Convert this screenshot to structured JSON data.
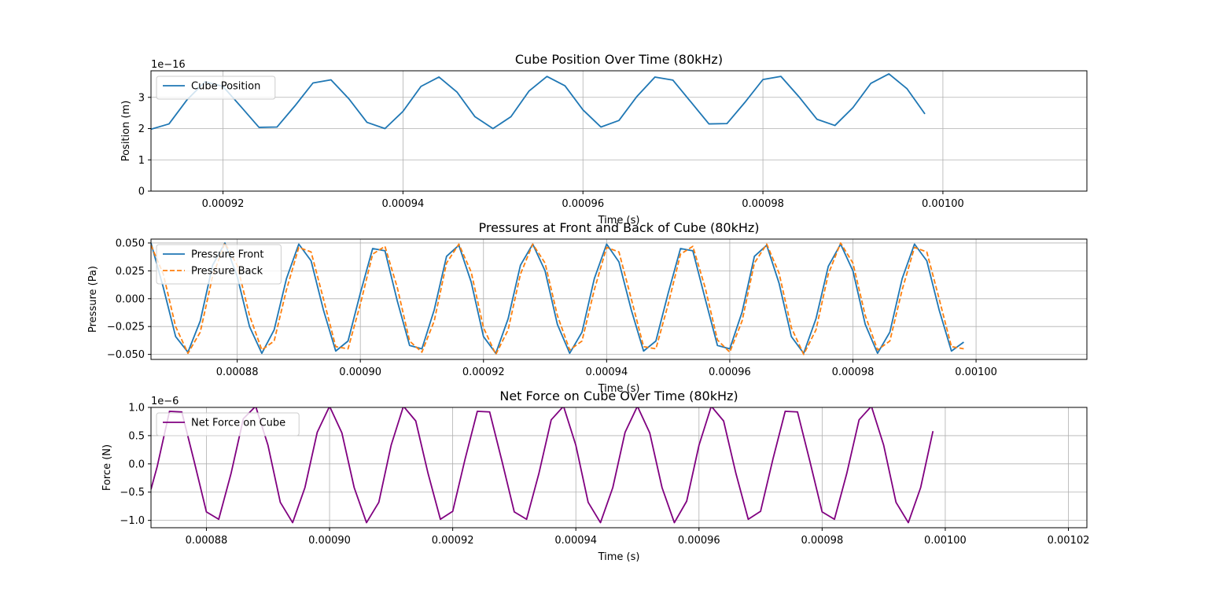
{
  "chart_data": [
    {
      "type": "line",
      "title": "Cube Position Over Time (80kHz)",
      "xlabel": "Time (s)",
      "ylabel": "Position (m)",
      "y_offset_text": "1e−16",
      "xlim": [
        0.000912,
        0.001016
      ],
      "ylim": [
        0,
        3.85
      ],
      "xticks": [
        0.00092,
        0.00094,
        0.00096,
        0.00098,
        0.001
      ],
      "xtick_labels": [
        "0.00092",
        "0.00094",
        "0.00096",
        "0.00098",
        "0.00100"
      ],
      "yticks": [
        0,
        1,
        2,
        3
      ],
      "ytick_labels": [
        "0",
        "1",
        "2",
        "3"
      ],
      "grid": true,
      "legend": "upper-left",
      "series": [
        {
          "name": "Cube Position",
          "color": "#1f77b4",
          "dash": "",
          "x": [
            0.000912,
            0.000914,
            0.000916,
            0.000918,
            0.00092,
            0.000922,
            0.000924,
            0.000926,
            0.000928,
            0.00093,
            0.000932,
            0.000934,
            0.000936,
            0.000938,
            0.00094,
            0.000942,
            0.000944,
            0.000946,
            0.000948,
            0.00095,
            0.000952,
            0.000954,
            0.000956,
            0.000958,
            0.00096,
            0.000962,
            0.000964,
            0.000966,
            0.000968,
            0.00097,
            0.000972,
            0.000974,
            0.000976,
            0.000978,
            0.00098,
            0.000982,
            0.000984,
            0.000986,
            0.000988,
            0.00099,
            0.000992,
            0.000994,
            0.000996,
            0.000998
          ],
          "y": [
            1.98,
            2.15,
            2.92,
            3.5,
            3.35,
            2.7,
            2.04,
            2.05,
            2.73,
            3.46,
            3.56,
            2.95,
            2.2,
            2.0,
            2.55,
            3.35,
            3.65,
            3.17,
            2.38,
            2.0,
            2.38,
            3.2,
            3.67,
            3.37,
            2.6,
            2.05,
            2.26,
            3.03,
            3.65,
            3.55,
            2.85,
            2.15,
            2.16,
            2.84,
            3.57,
            3.67,
            3.02,
            2.3,
            2.1,
            2.67,
            3.45,
            3.75,
            3.28,
            2.47
          ]
        }
      ]
    },
    {
      "type": "line",
      "title": "Pressures at Front and Back of Cube (80kHz)",
      "xlabel": "Time (s)",
      "ylabel": "Pressure (Pa)",
      "y_offset_text": "",
      "xlim": [
        0.000866,
        0.001018
      ],
      "ylim": [
        -0.0545,
        0.0535
      ],
      "xticks": [
        0.00088,
        0.0009,
        0.00092,
        0.00094,
        0.00096,
        0.00098,
        0.001
      ],
      "xtick_labels": [
        "0.00088",
        "0.00090",
        "0.00092",
        "0.00094",
        "0.00096",
        "0.00098",
        "0.00100"
      ],
      "yticks": [
        -0.05,
        -0.025,
        0.0,
        0.025,
        0.05
      ],
      "ytick_labels": [
        "−0.050",
        "−0.025",
        "0.000",
        "0.025",
        "0.050"
      ],
      "grid": true,
      "legend": "upper-left",
      "series": [
        {
          "name": "Pressure Front",
          "color": "#1f77b4",
          "dash": "",
          "x": [
            0.000866,
            0.000868,
            0.00087,
            0.000872,
            0.000874,
            0.000876,
            0.000878,
            0.00088,
            0.000882,
            0.000884,
            0.000886,
            0.000888,
            0.00089,
            0.000892,
            0.000894,
            0.000896,
            0.000898,
            0.0009,
            0.000902,
            0.000904,
            0.000906,
            0.000908,
            0.00091,
            0.000912,
            0.000914,
            0.000916,
            0.000918,
            0.00092,
            0.000922,
            0.000924,
            0.000926,
            0.000928,
            0.00093,
            0.000932,
            0.000934,
            0.000936,
            0.000938,
            0.00094,
            0.000942,
            0.000944,
            0.000946,
            0.000948,
            0.00095,
            0.000952,
            0.000954,
            0.000956,
            0.000958,
            0.00096,
            0.000962,
            0.000964,
            0.000966,
            0.000968,
            0.00097,
            0.000972,
            0.000974,
            0.000976,
            0.000978,
            0.00098,
            0.000982,
            0.000984,
            0.000986,
            0.000988,
            0.00099,
            0.000992,
            0.000994,
            0.000996,
            0.000998
          ],
          "y": [
            0.05,
            0.01,
            -0.034,
            -0.048,
            -0.02,
            0.03,
            0.05,
            0.02,
            -0.025,
            -0.049,
            -0.028,
            0.018,
            0.049,
            0.034,
            -0.01,
            -0.047,
            -0.038,
            0.005,
            0.045,
            0.043,
            -0.002,
            -0.042,
            -0.045,
            -0.01,
            0.038,
            0.048,
            0.015,
            -0.034,
            -0.049,
            -0.018,
            0.03,
            0.049,
            0.025,
            -0.023,
            -0.049,
            -0.03,
            0.018,
            0.049,
            0.033,
            -0.01,
            -0.047,
            -0.038,
            0.005,
            0.045,
            0.043,
            0.0,
            -0.042,
            -0.045,
            -0.012,
            0.038,
            0.048,
            0.014,
            -0.034,
            -0.049,
            -0.018,
            0.029,
            0.049,
            0.025,
            -0.023,
            -0.049,
            -0.03,
            0.018,
            0.049,
            0.034,
            -0.01,
            -0.047,
            -0.039
          ]
        },
        {
          "name": "Pressure Back",
          "color": "#ff7f0e",
          "dash": "6,3",
          "x": [
            0.000866,
            0.000868,
            0.00087,
            0.000872,
            0.000874,
            0.000876,
            0.000878,
            0.00088,
            0.000882,
            0.000884,
            0.000886,
            0.000888,
            0.00089,
            0.000892,
            0.000894,
            0.000896,
            0.000898,
            0.0009,
            0.000902,
            0.000904,
            0.000906,
            0.000908,
            0.00091,
            0.000912,
            0.000914,
            0.000916,
            0.000918,
            0.00092,
            0.000922,
            0.000924,
            0.000926,
            0.000928,
            0.00093,
            0.000932,
            0.000934,
            0.000936,
            0.000938,
            0.00094,
            0.000942,
            0.000944,
            0.000946,
            0.000948,
            0.00095,
            0.000952,
            0.000954,
            0.000956,
            0.000958,
            0.00096,
            0.000962,
            0.000964,
            0.000966,
            0.000968,
            0.00097,
            0.000972,
            0.000974,
            0.000976,
            0.000978,
            0.00098,
            0.000982,
            0.000984,
            0.000986,
            0.000988,
            0.00099,
            0.000992,
            0.000994,
            0.000996,
            0.000998
          ],
          "y": [
            0.048,
            0.022,
            -0.025,
            -0.049,
            -0.03,
            0.02,
            0.05,
            0.03,
            -0.015,
            -0.046,
            -0.038,
            0.008,
            0.046,
            0.042,
            0.0,
            -0.043,
            -0.045,
            -0.005,
            0.04,
            0.047,
            0.01,
            -0.038,
            -0.048,
            -0.02,
            0.032,
            0.049,
            0.024,
            -0.026,
            -0.05,
            -0.028,
            0.022,
            0.049,
            0.032,
            -0.015,
            -0.046,
            -0.038,
            0.008,
            0.046,
            0.042,
            0.0,
            -0.043,
            -0.045,
            -0.005,
            0.04,
            0.047,
            0.01,
            -0.037,
            -0.048,
            -0.02,
            0.032,
            0.049,
            0.023,
            -0.026,
            -0.05,
            -0.028,
            0.022,
            0.05,
            0.032,
            -0.015,
            -0.046,
            -0.038,
            0.008,
            0.046,
            0.042,
            0.0,
            -0.043,
            -0.045
          ]
        }
      ]
    },
    {
      "type": "line",
      "title": "Net Force on Cube Over Time (80kHz)",
      "xlabel": "Time (s)",
      "ylabel": "Force (N)",
      "y_offset_text": "1e−6",
      "xlim": [
        0.000871,
        0.001023
      ],
      "ylim": [
        -1.13,
        1.0
      ],
      "xticks": [
        0.00088,
        0.0009,
        0.00092,
        0.00094,
        0.00096,
        0.00098,
        0.001,
        0.00102
      ],
      "xtick_labels": [
        "0.00088",
        "0.00090",
        "0.00092",
        "0.00094",
        "0.00096",
        "0.00098",
        "0.00100",
        "0.00102"
      ],
      "yticks": [
        -1.0,
        -0.5,
        0.0,
        0.5,
        1.0
      ],
      "ytick_labels": [
        "−1.0",
        "−0.5",
        "0.0",
        "0.5",
        "1.0"
      ],
      "grid": true,
      "legend": "upper-left",
      "series": [
        {
          "name": "Net Force on Cube",
          "color": "#800080",
          "dash": "",
          "x": [
            0.000871,
            0.000872,
            0.000874,
            0.000876,
            0.000878,
            0.00088,
            0.000882,
            0.000884,
            0.000886,
            0.000888,
            0.00089,
            0.000892,
            0.000894,
            0.000896,
            0.000898,
            0.0009,
            0.000902,
            0.000904,
            0.000906,
            0.000908,
            0.00091,
            0.000912,
            0.000914,
            0.000916,
            0.000918,
            0.00092,
            0.000922,
            0.000924,
            0.000926,
            0.000928,
            0.00093,
            0.000932,
            0.000934,
            0.000936,
            0.000938,
            0.00094,
            0.000942,
            0.000944,
            0.000946,
            0.000948,
            0.00095,
            0.000952,
            0.000954,
            0.000956,
            0.000958,
            0.00096,
            0.000962,
            0.000964,
            0.000966,
            0.000968,
            0.00097,
            0.000972,
            0.000974,
            0.000976,
            0.000978,
            0.00098,
            0.000982,
            0.000984,
            0.000986,
            0.000988,
            0.00099,
            0.000992,
            0.000994,
            0.000996,
            0.000998
          ],
          "y": [
            -0.45,
            -0.05,
            0.93,
            0.92,
            0.05,
            -0.85,
            -0.98,
            -0.17,
            0.8,
            1.02,
            0.33,
            -0.68,
            -1.04,
            -0.42,
            0.56,
            1.02,
            0.55,
            -0.42,
            -1.04,
            -0.68,
            0.33,
            1.02,
            0.76,
            -0.17,
            -0.98,
            -0.84,
            0.08,
            0.93,
            0.92,
            0.05,
            -0.85,
            -0.98,
            -0.17,
            0.78,
            1.02,
            0.33,
            -0.68,
            -1.04,
            -0.42,
            0.56,
            1.02,
            0.55,
            -0.42,
            -1.04,
            -0.66,
            0.33,
            1.02,
            0.76,
            -0.17,
            -0.98,
            -0.84,
            0.08,
            0.93,
            0.92,
            0.05,
            -0.85,
            -0.98,
            -0.17,
            0.78,
            1.02,
            0.33,
            -0.68,
            -1.04,
            -0.42,
            0.58
          ]
        }
      ]
    }
  ]
}
